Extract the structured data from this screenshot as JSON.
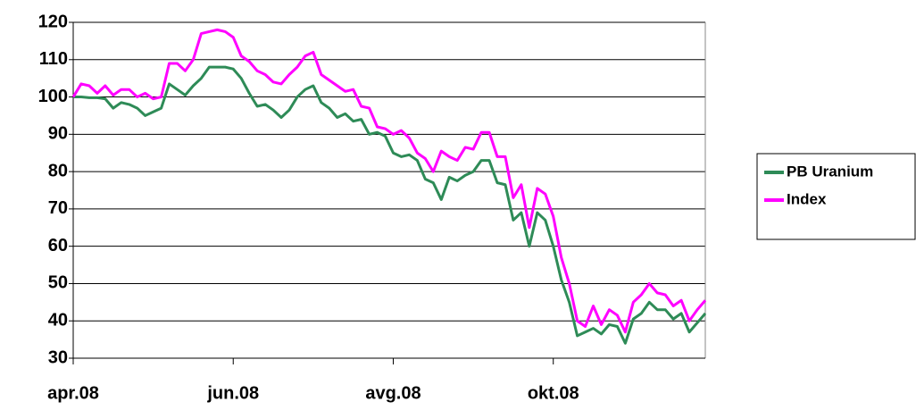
{
  "chart_data": {
    "type": "line",
    "categories": [
      "apr.08",
      null,
      null,
      null,
      null,
      null,
      null,
      null,
      null,
      null,
      null,
      null,
      null,
      null,
      null,
      null,
      null,
      null,
      null,
      null,
      "jun.08",
      null,
      null,
      null,
      null,
      null,
      null,
      null,
      null,
      null,
      null,
      null,
      null,
      null,
      null,
      null,
      null,
      null,
      null,
      null,
      "avg.08",
      null,
      null,
      null,
      null,
      null,
      null,
      null,
      null,
      null,
      null,
      null,
      null,
      null,
      null,
      null,
      null,
      null,
      null,
      null,
      "okt.08",
      null,
      null,
      null,
      null,
      null,
      null,
      null,
      null,
      null,
      null,
      null,
      null,
      null,
      null,
      null,
      null,
      null,
      null,
      null
    ],
    "series": [
      {
        "name": "PB Uranium",
        "color": "#2e8b57",
        "values": [
          100,
          100,
          99.8,
          99.8,
          99.5,
          97,
          98.5,
          98,
          97,
          95,
          96,
          97,
          103.5,
          102,
          100.5,
          103,
          105,
          108,
          108,
          108,
          107.5,
          105,
          101,
          97.5,
          98,
          96.5,
          94.5,
          96.5,
          100,
          102,
          103,
          98.5,
          97,
          94.5,
          95.5,
          93.5,
          94,
          90,
          90.5,
          89.5,
          85,
          84,
          84.5,
          83,
          78,
          77,
          72.5,
          78.5,
          77.5,
          79,
          80,
          83,
          83,
          77,
          76.5,
          67,
          69,
          60,
          69,
          67,
          60,
          51,
          45,
          36,
          37,
          38,
          36.5,
          39,
          38.5,
          34,
          40.5,
          42,
          45,
          43,
          43,
          40.5,
          42,
          37,
          39.5,
          42
        ]
      },
      {
        "name": "Index",
        "color": "#ff00ff",
        "values": [
          100,
          103.5,
          103,
          101,
          103,
          100.5,
          102,
          102,
          100,
          101,
          99.5,
          100,
          109,
          109,
          107,
          110,
          117,
          117.5,
          118,
          117.5,
          116,
          111,
          109.5,
          107,
          106,
          104,
          103.5,
          106,
          108,
          111,
          112,
          106,
          104.5,
          103,
          101.5,
          102,
          97.5,
          97,
          92,
          91.5,
          90,
          91,
          89,
          85,
          83.5,
          80,
          85.5,
          84,
          83,
          86.5,
          86,
          90.5,
          90.5,
          84,
          84,
          73,
          76.5,
          65,
          75.5,
          74,
          68,
          57,
          50,
          40,
          38.5,
          44,
          39,
          43,
          41.5,
          37,
          45,
          47,
          50,
          47.5,
          47,
          44,
          45.5,
          40,
          43,
          45.5
        ]
      }
    ],
    "ylim": [
      30,
      120
    ],
    "yticks": [
      30,
      40,
      50,
      60,
      70,
      80,
      90,
      100,
      110,
      120
    ],
    "grid": true,
    "legend": "right"
  }
}
